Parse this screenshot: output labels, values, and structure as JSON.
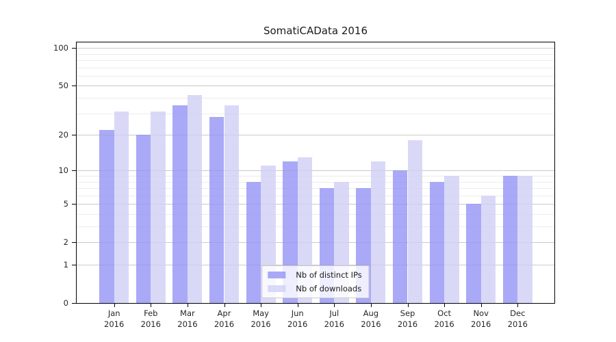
{
  "title": "SomatiCAData 2016",
  "chart_data": {
    "type": "bar",
    "title": "SomatiCAData 2016",
    "categories": [
      "Jan",
      "Feb",
      "Mar",
      "Apr",
      "May",
      "Jun",
      "Jul",
      "Aug",
      "Sep",
      "Oct",
      "Nov",
      "Dec"
    ],
    "year": "2016",
    "series": [
      {
        "name": "Nb of distinct IPs",
        "color": "rgba(148,148,245,0.8)",
        "values": [
          22,
          20,
          35,
          28,
          8,
          12,
          7,
          7,
          10,
          8,
          5,
          9
        ]
      },
      {
        "name": "Nb of downloads",
        "color": "rgba(208,208,245,0.8)",
        "values": [
          31,
          31,
          42,
          35,
          11,
          13,
          8,
          12,
          18,
          9,
          6,
          9
        ]
      }
    ],
    "xlabel": "",
    "ylabel": "",
    "yscale": "log1p",
    "ylim": [
      0,
      111
    ],
    "yticks": [
      0,
      1,
      2,
      5,
      10,
      20,
      50,
      100
    ],
    "minor_gridlines": [
      3,
      4,
      6,
      7,
      8,
      9,
      30,
      40,
      60,
      70,
      80,
      90
    ],
    "grid": "on",
    "legend_position": "lower center"
  },
  "colors": {
    "bar_ips": "rgba(148,148,245,0.8)",
    "bar_downloads": "rgba(208,208,245,0.8)",
    "grid_major": "#c9c9c9",
    "grid_minor": "#ececec",
    "axis": "#000000",
    "text": "#262626",
    "legend_bg": "rgba(255,255,255,0.8)",
    "legend_border": "#cccccc"
  }
}
